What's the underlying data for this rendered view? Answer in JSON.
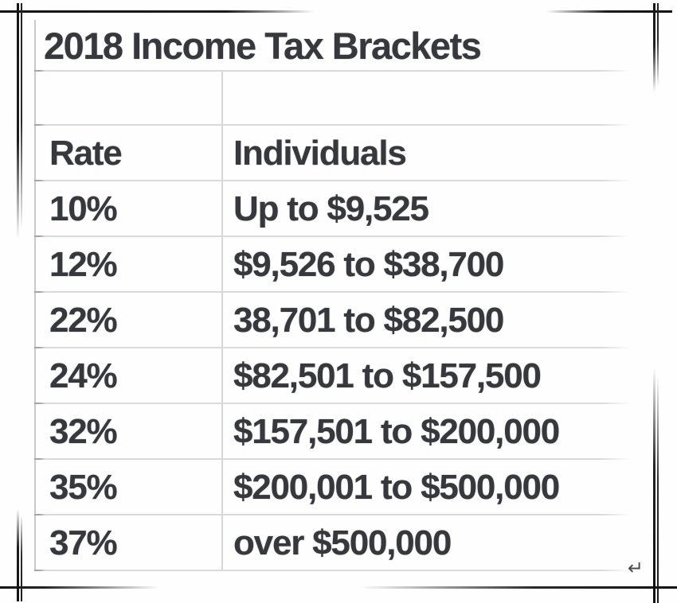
{
  "table": {
    "title": "2018 Income Tax Brackets",
    "columns": {
      "rate": "Rate",
      "individuals": "Individuals"
    },
    "rows": [
      {
        "rate": "10%",
        "individuals": "Up to $9,525"
      },
      {
        "rate": "12%",
        "individuals": "$9,526 to $38,700"
      },
      {
        "rate": "22%",
        "individuals": "38,701 to $82,500"
      },
      {
        "rate": "24%",
        "individuals": "$82,501 to $157,500"
      },
      {
        "rate": "32%",
        "individuals": "$157,501 to $200,000"
      },
      {
        "rate": "35%",
        "individuals": "$200,001 to $500,000"
      },
      {
        "rate": "37%",
        "individuals": "over $500,000"
      }
    ],
    "return_mark": "↵"
  },
  "colors": {
    "text": "#36383d",
    "grid_line": "#d8dadc",
    "table_border": "#c7c9cb",
    "frame_stroke": "#1b1b1b",
    "background": "#fefefe"
  },
  "chart_data": {
    "type": "table",
    "title": "2018 Income Tax Brackets",
    "columns": [
      "Rate",
      "Individuals"
    ],
    "rows": [
      [
        "10%",
        "Up to $9,525"
      ],
      [
        "12%",
        "$9,526 to $38,700"
      ],
      [
        "22%",
        "38,701 to $82,500"
      ],
      [
        "24%",
        "$82,501 to $157,500"
      ],
      [
        "32%",
        "$157,501 to $200,000"
      ],
      [
        "35%",
        "$200,001 to $500,000"
      ],
      [
        "37%",
        "over $500,000"
      ]
    ],
    "notes": "Tax rate brackets for individuals, tax year 2018; grid table with title row, blank spacer row, header row and 7 data rows"
  }
}
